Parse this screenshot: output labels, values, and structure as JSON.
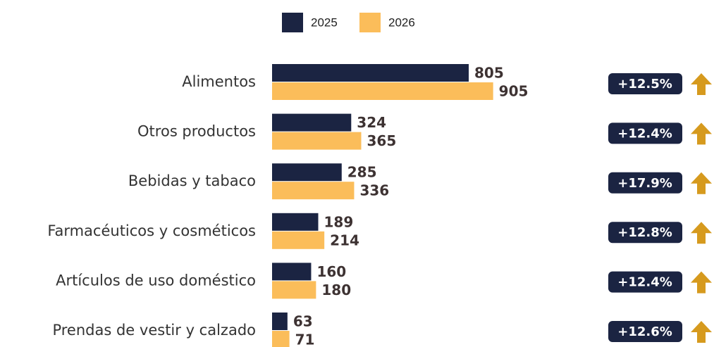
{
  "chart_data": {
    "type": "bar",
    "orientation": "horizontal",
    "categories": [
      "Alimentos",
      "Otros productos",
      "Bebidas y tabaco",
      "Farmacéuticos y cosméticos",
      "Artículos de uso doméstico",
      "Prendas de vestir y calzado"
    ],
    "series": [
      {
        "name": "2025",
        "color": "#1b2442",
        "values": [
          805,
          324,
          285,
          189,
          160,
          63
        ]
      },
      {
        "name": "2026",
        "color": "#fbbd5a",
        "values": [
          905,
          365,
          336,
          214,
          180,
          71
        ]
      }
    ],
    "annotations": [
      "+12.5%",
      "+12.4%",
      "+17.9%",
      "+12.8%",
      "+12.4%",
      "+12.6%"
    ],
    "annotation_color": "#1b2442",
    "arrow_color": "#d69a1e"
  }
}
